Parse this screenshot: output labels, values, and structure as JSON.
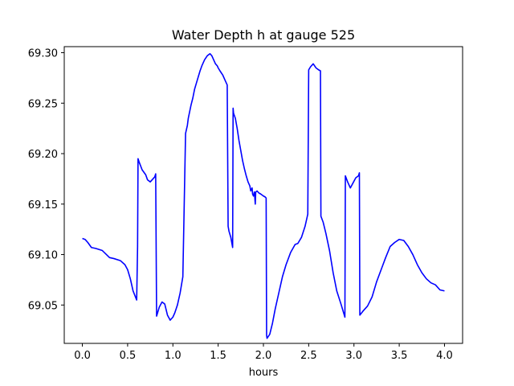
{
  "chart_data": {
    "type": "line",
    "title": "Water Depth h at gauge 525",
    "xlabel": "hours",
    "ylabel": "",
    "xlim": [
      -0.2,
      4.2
    ],
    "ylim": [
      69.012,
      69.306
    ],
    "xticks": [
      0.0,
      0.5,
      1.0,
      1.5,
      2.0,
      2.5,
      3.0,
      3.5,
      4.0
    ],
    "xtick_labels": [
      "0.0",
      "0.5",
      "1.0",
      "1.5",
      "2.0",
      "2.5",
      "3.0",
      "3.5",
      "4.0"
    ],
    "yticks": [
      69.05,
      69.1,
      69.15,
      69.2,
      69.25,
      69.3
    ],
    "ytick_labels": [
      "69.05",
      "69.10",
      "69.15",
      "69.20",
      "69.25",
      "69.30"
    ],
    "grid": false,
    "series": [
      {
        "color": "#0000ff",
        "x": [
          0.0,
          0.03,
          0.06,
          0.1,
          0.15,
          0.22,
          0.3,
          0.35,
          0.42,
          0.47,
          0.5,
          0.53,
          0.56,
          0.6,
          0.61,
          0.615,
          0.63,
          0.66,
          0.7,
          0.72,
          0.75,
          0.78,
          0.8,
          0.81,
          0.82,
          0.85,
          0.88,
          0.91,
          0.94,
          0.97,
          1.0,
          1.02,
          1.05,
          1.08,
          1.11,
          1.14,
          1.16,
          1.17,
          1.2,
          1.22,
          1.24,
          1.26,
          1.28,
          1.3,
          1.32,
          1.35,
          1.38,
          1.41,
          1.43,
          1.45,
          1.47,
          1.49,
          1.5,
          1.52,
          1.55,
          1.58,
          1.6,
          1.61,
          1.62,
          1.64,
          1.66,
          1.665,
          1.67,
          1.69,
          1.71,
          1.73,
          1.75,
          1.77,
          1.79,
          1.81,
          1.83,
          1.85,
          1.86,
          1.875,
          1.88,
          1.89,
          1.9,
          1.91,
          1.915,
          1.93,
          1.95,
          1.97,
          2.0,
          2.02,
          2.03,
          2.035,
          2.04,
          2.07,
          2.1,
          2.13,
          2.17,
          2.21,
          2.25,
          2.3,
          2.35,
          2.38,
          2.42,
          2.46,
          2.49,
          2.5,
          2.52,
          2.55,
          2.58,
          2.61,
          2.63,
          2.635,
          2.66,
          2.69,
          2.73,
          2.77,
          2.81,
          2.86,
          2.9,
          2.905,
          2.93,
          2.96,
          2.99,
          3.02,
          3.05,
          3.06,
          3.065,
          3.1,
          3.15,
          3.2,
          3.25,
          3.3,
          3.35,
          3.4,
          3.45,
          3.5,
          3.55,
          3.6,
          3.65,
          3.7,
          3.75,
          3.8,
          3.85,
          3.9,
          3.95,
          4.0
        ],
        "y": [
          69.116,
          69.115,
          69.112,
          69.107,
          69.106,
          69.104,
          69.097,
          69.096,
          69.094,
          69.09,
          69.085,
          69.076,
          69.064,
          69.055,
          69.108,
          69.195,
          69.191,
          69.184,
          69.179,
          69.174,
          69.172,
          69.175,
          69.177,
          69.18,
          69.039,
          69.048,
          69.053,
          69.051,
          69.04,
          69.035,
          69.038,
          69.042,
          69.05,
          69.062,
          69.078,
          69.22,
          69.228,
          69.235,
          69.248,
          69.255,
          69.264,
          69.27,
          69.276,
          69.282,
          69.287,
          69.293,
          69.297,
          69.299,
          69.297,
          69.293,
          69.289,
          69.287,
          69.285,
          69.282,
          69.278,
          69.272,
          69.268,
          69.128,
          69.123,
          69.117,
          69.107,
          69.245,
          69.24,
          69.235,
          69.225,
          69.213,
          69.203,
          69.193,
          69.185,
          69.178,
          69.172,
          69.168,
          69.163,
          69.166,
          69.16,
          69.158,
          69.162,
          69.15,
          69.162,
          69.163,
          69.161,
          69.16,
          69.158,
          69.157,
          69.156,
          69.02,
          69.017,
          69.021,
          69.032,
          69.046,
          69.062,
          69.078,
          69.09,
          69.102,
          69.11,
          69.111,
          69.117,
          69.128,
          69.14,
          69.283,
          69.286,
          69.289,
          69.285,
          69.283,
          69.282,
          69.138,
          69.132,
          69.121,
          69.104,
          69.082,
          69.064,
          69.05,
          69.038,
          69.178,
          69.172,
          69.166,
          69.171,
          69.176,
          69.178,
          69.181,
          69.04,
          69.044,
          69.049,
          69.058,
          69.073,
          69.085,
          69.097,
          69.108,
          69.112,
          69.115,
          69.114,
          69.108,
          69.1,
          69.09,
          69.082,
          69.076,
          69.072,
          69.07,
          69.065,
          69.064
        ]
      }
    ]
  }
}
